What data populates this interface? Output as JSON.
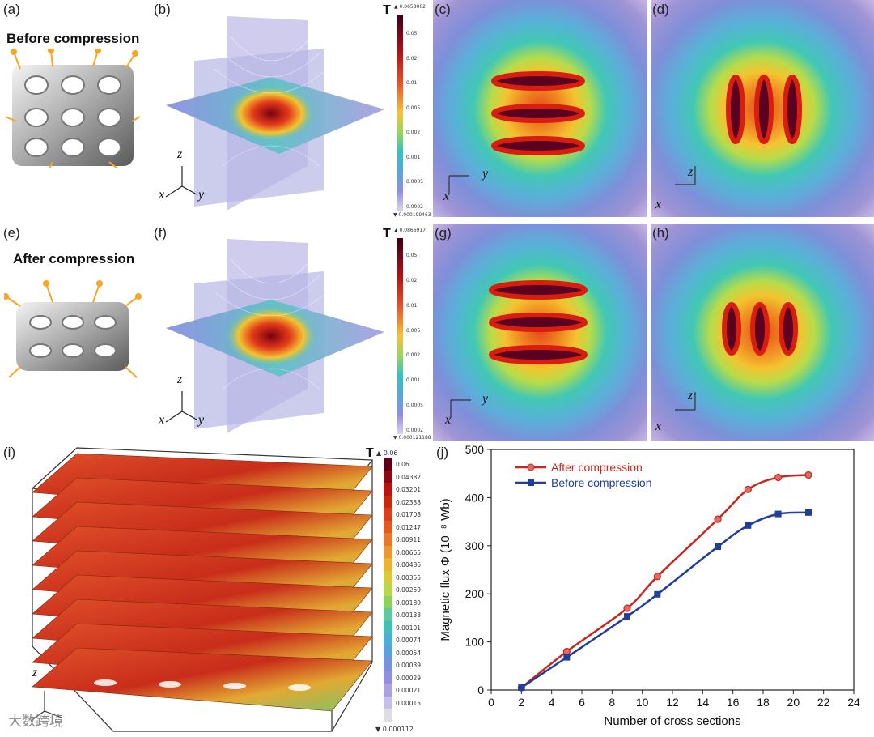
{
  "labels": {
    "a": "(a)",
    "b": "(b)",
    "c": "(c)",
    "d": "(d)",
    "e": "(e)",
    "f": "(f)",
    "g": "(g)",
    "h": "(h)",
    "i": "(i)",
    "j": "(j)"
  },
  "titles": {
    "before": "Before compression",
    "after": "After compression"
  },
  "axes": {
    "x": "x",
    "y": "y",
    "z": "z"
  },
  "colorbar_b": {
    "unit": "T",
    "max": "▲ 0.0658002",
    "min": "▼ 0.000199463",
    "ticks": [
      "0.05",
      "0.02",
      "0.01",
      "0.005",
      "0.002",
      "0.001",
      "0.0005",
      "0.0002"
    ]
  },
  "colorbar_f": {
    "unit": "T",
    "max": "▲ 0.0866917",
    "min": "▼ 0.000121188",
    "ticks": [
      "0.05",
      "0.02",
      "0.01",
      "0.005",
      "0.002",
      "0.001",
      "0.0005",
      "0.0002"
    ]
  },
  "colorbar_i": {
    "unit": "T",
    "max": "▲ 0.06",
    "min": "▼ 0.000112",
    "ticks": [
      "0.06",
      "0.04382",
      "0.03201",
      "0.02338",
      "0.01708",
      "0.01247",
      "0.00911",
      "0.00665",
      "0.00486",
      "0.00355",
      "0.00259",
      "0.00189",
      "0.00138",
      "0.00101",
      "0.00074",
      "0.00054",
      "0.00039",
      "0.00029",
      "0.00021",
      "0.00015"
    ]
  },
  "colors": {
    "after": "#c8261e",
    "before": "#1f3f9a"
  },
  "watermark": "大数跨境",
  "chart_data": {
    "type": "line",
    "xlabel": "Number of cross sections",
    "ylabel": "Magnetic flux Φ (10⁻⁸ Wb)",
    "xlim": [
      0,
      24
    ],
    "ylim": [
      0,
      500
    ],
    "xticks": [
      0,
      2,
      4,
      6,
      8,
      10,
      12,
      14,
      16,
      18,
      20,
      22,
      24
    ],
    "yticks": [
      0,
      100,
      200,
      300,
      400,
      500
    ],
    "legend_position": "top-left",
    "series": [
      {
        "name": "After compression",
        "x": [
          2,
          5,
          9,
          11,
          15,
          17,
          19,
          21
        ],
        "y": [
          5,
          80,
          170,
          236,
          355,
          417,
          442,
          447
        ]
      },
      {
        "name": "Before compression",
        "x": [
          2,
          5,
          9,
          11,
          15,
          17,
          19,
          21
        ],
        "y": [
          5,
          68,
          153,
          199,
          298,
          342,
          366,
          369
        ]
      }
    ]
  }
}
